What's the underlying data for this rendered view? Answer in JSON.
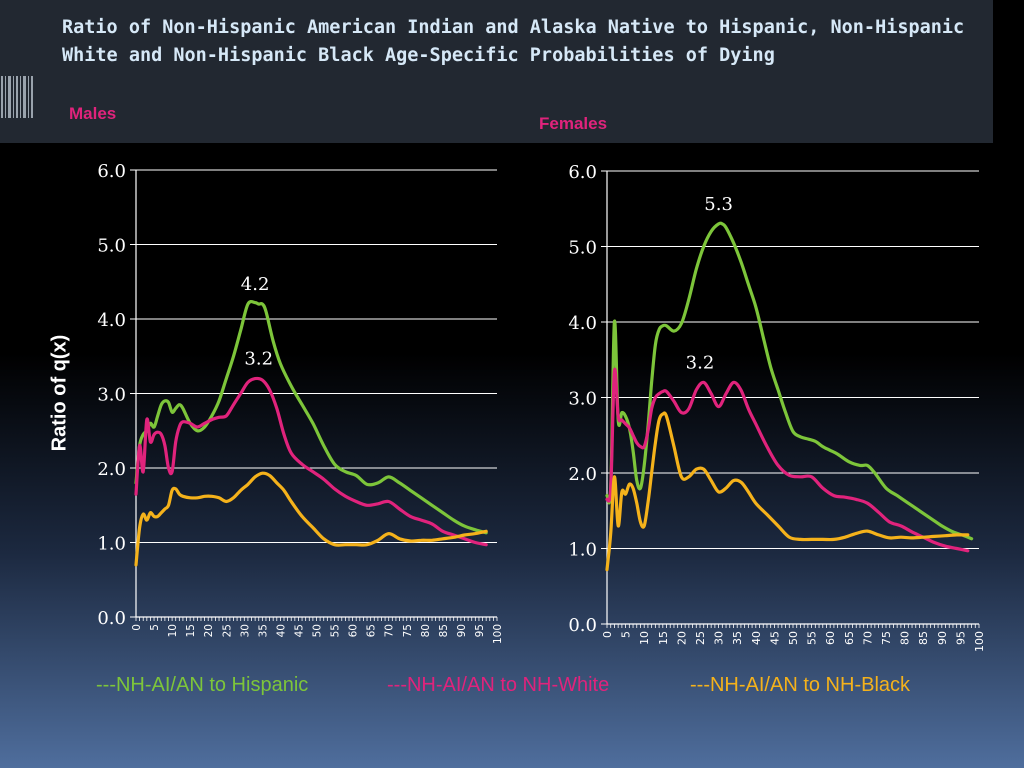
{
  "title": "Ratio of Non-Hispanic American Indian and Alaska Native to Hispanic, Non-Hispanic White and Non-Hispanic Black Age-Specific Probabilities of Dying",
  "ylabel": "Ratio of q(x)",
  "colors": {
    "hispanic": "#7dc53a",
    "white": "#e0237c",
    "black": "#f5b21b",
    "panel_label": "#e0237c"
  },
  "legend": [
    {
      "label": "---NH-AI/AN to Hispanic",
      "color": "#7dc53a"
    },
    {
      "label": "---NH-AI/AN to NH-White",
      "color": "#e0237c"
    },
    {
      "label": "---NH-AI/AN to NH-Black",
      "color": "#f5b21b"
    }
  ],
  "chart_data": [
    {
      "type": "line",
      "panel": "Males",
      "ylim": [
        0,
        6
      ],
      "xlim": [
        0,
        100
      ],
      "yticks": [
        "0.0",
        "1.0",
        "2.0",
        "3.0",
        "4.0",
        "5.0",
        "6.0"
      ],
      "xticks": [
        "0",
        "5",
        "10",
        "15",
        "20",
        "25",
        "30",
        "35",
        "40",
        "45",
        "50",
        "55",
        "60",
        "65",
        "70",
        "75",
        "80",
        "85",
        "90",
        "95",
        "100"
      ],
      "grid": true,
      "annotations": [
        {
          "text": "4.2",
          "x": 33,
          "y": 4.2
        },
        {
          "text": "3.2",
          "x": 34,
          "y": 3.2
        }
      ],
      "series": [
        {
          "name": "---NH-AI/AN to Hispanic",
          "key": "hispanic",
          "x": [
            0,
            1,
            2,
            3,
            4,
            5,
            6,
            7,
            8,
            9,
            10,
            11,
            12,
            13,
            15,
            17,
            19,
            21,
            23,
            25,
            27,
            29,
            31,
            33,
            34,
            35,
            36,
            38,
            40,
            43,
            46,
            49,
            52,
            55,
            58,
            61,
            64,
            67,
            70,
            73,
            76,
            79,
            82,
            85,
            88,
            91,
            94,
            97
          ],
          "y": [
            1.8,
            2.3,
            2.45,
            2.5,
            2.6,
            2.55,
            2.7,
            2.85,
            2.9,
            2.88,
            2.75,
            2.8,
            2.85,
            2.8,
            2.6,
            2.5,
            2.55,
            2.7,
            2.9,
            3.2,
            3.5,
            3.85,
            4.2,
            4.22,
            4.2,
            4.2,
            4.1,
            3.7,
            3.4,
            3.1,
            2.85,
            2.6,
            2.3,
            2.05,
            1.95,
            1.9,
            1.78,
            1.8,
            1.88,
            1.8,
            1.7,
            1.6,
            1.5,
            1.4,
            1.3,
            1.22,
            1.17,
            1.13
          ]
        },
        {
          "name": "---NH-AI/AN to NH-White",
          "key": "white",
          "x": [
            0,
            1,
            2,
            3,
            4,
            5,
            6,
            7,
            8,
            9,
            10,
            11,
            12,
            13,
            15,
            17,
            19,
            21,
            23,
            25,
            27,
            29,
            31,
            33,
            35,
            37,
            39,
            41,
            43,
            46,
            49,
            52,
            55,
            58,
            61,
            64,
            67,
            70,
            73,
            76,
            79,
            82,
            85,
            88,
            91,
            94,
            97
          ],
          "y": [
            1.65,
            2.3,
            1.95,
            2.65,
            2.35,
            2.45,
            2.48,
            2.45,
            2.3,
            2.0,
            1.95,
            2.35,
            2.55,
            2.62,
            2.6,
            2.55,
            2.6,
            2.65,
            2.68,
            2.7,
            2.85,
            3.0,
            3.15,
            3.2,
            3.18,
            3.05,
            2.8,
            2.45,
            2.2,
            2.05,
            1.95,
            1.85,
            1.72,
            1.62,
            1.55,
            1.5,
            1.52,
            1.55,
            1.45,
            1.35,
            1.3,
            1.25,
            1.15,
            1.1,
            1.05,
            1.0,
            0.97
          ]
        },
        {
          "name": "---NH-AI/AN to NH-Black",
          "key": "black",
          "x": [
            0,
            1,
            2,
            3,
            4,
            5,
            6,
            7,
            8,
            9,
            10,
            11,
            12,
            13,
            15,
            17,
            19,
            21,
            23,
            25,
            27,
            29,
            31,
            33,
            35,
            37,
            39,
            41,
            43,
            46,
            49,
            52,
            55,
            58,
            61,
            64,
            67,
            70,
            73,
            76,
            79,
            82,
            85,
            88,
            91,
            94,
            97
          ],
          "y": [
            0.7,
            1.2,
            1.38,
            1.3,
            1.4,
            1.35,
            1.35,
            1.4,
            1.45,
            1.5,
            1.7,
            1.72,
            1.65,
            1.62,
            1.6,
            1.6,
            1.62,
            1.62,
            1.6,
            1.55,
            1.6,
            1.7,
            1.78,
            1.88,
            1.93,
            1.9,
            1.8,
            1.7,
            1.55,
            1.35,
            1.2,
            1.05,
            0.97,
            0.97,
            0.97,
            0.97,
            1.03,
            1.12,
            1.05,
            1.02,
            1.03,
            1.03,
            1.05,
            1.07,
            1.1,
            1.12,
            1.15
          ]
        }
      ]
    },
    {
      "type": "line",
      "panel": "Females",
      "ylim": [
        0,
        6
      ],
      "xlim": [
        0,
        100
      ],
      "yticks": [
        "0.0",
        "1.0",
        "2.0",
        "3.0",
        "4.0",
        "5.0",
        "6.0"
      ],
      "xticks": [
        "0",
        "5",
        "10",
        "15",
        "20",
        "25",
        "30",
        "35",
        "40",
        "45",
        "50",
        "55",
        "60",
        "65",
        "70",
        "75",
        "80",
        "85",
        "90",
        "95",
        "100"
      ],
      "grid": true,
      "annotations": [
        {
          "text": "5.3",
          "x": 30,
          "y": 5.3
        },
        {
          "text": "3.2",
          "x": 25,
          "y": 3.2
        }
      ],
      "series": [
        {
          "name": "---NH-AI/AN to Hispanic",
          "key": "hispanic",
          "x": [
            0,
            1,
            2,
            3,
            4,
            5,
            6,
            7,
            8,
            9,
            10,
            11,
            12,
            13,
            14,
            15,
            16,
            18,
            20,
            22,
            24,
            26,
            28,
            30,
            31,
            32,
            34,
            36,
            38,
            40,
            42,
            44,
            46,
            48,
            50,
            52,
            54,
            56,
            58,
            60,
            62,
            65,
            68,
            70,
            72,
            75,
            78,
            81,
            84,
            87,
            90,
            93,
            96,
            98
          ],
          "y": [
            1.7,
            1.8,
            4.0,
            2.7,
            2.8,
            2.75,
            2.6,
            2.3,
            1.9,
            1.8,
            2.1,
            2.6,
            3.2,
            3.7,
            3.9,
            3.95,
            3.95,
            3.88,
            3.98,
            4.3,
            4.7,
            5.0,
            5.2,
            5.3,
            5.3,
            5.25,
            5.05,
            4.8,
            4.5,
            4.2,
            3.8,
            3.4,
            3.1,
            2.8,
            2.55,
            2.48,
            2.45,
            2.42,
            2.35,
            2.3,
            2.25,
            2.15,
            2.1,
            2.1,
            2.0,
            1.8,
            1.7,
            1.6,
            1.5,
            1.4,
            1.3,
            1.22,
            1.17,
            1.13
          ]
        },
        {
          "name": "---NH-AI/AN to NH-White",
          "key": "white",
          "x": [
            0,
            1,
            2,
            3,
            4,
            5,
            6,
            7,
            8,
            9,
            10,
            11,
            12,
            13,
            14,
            15,
            16,
            18,
            20,
            22,
            24,
            26,
            28,
            30,
            32,
            34,
            36,
            38,
            40,
            43,
            46,
            49,
            52,
            55,
            58,
            61,
            64,
            67,
            70,
            73,
            76,
            79,
            82,
            85,
            88,
            91,
            94,
            97
          ],
          "y": [
            1.65,
            1.8,
            3.35,
            2.75,
            2.7,
            2.65,
            2.6,
            2.5,
            2.4,
            2.35,
            2.35,
            2.55,
            2.85,
            3.0,
            3.05,
            3.08,
            3.08,
            2.95,
            2.8,
            2.85,
            3.1,
            3.2,
            3.05,
            2.88,
            3.05,
            3.2,
            3.1,
            2.85,
            2.65,
            2.35,
            2.1,
            1.97,
            1.95,
            1.95,
            1.8,
            1.7,
            1.68,
            1.65,
            1.6,
            1.48,
            1.35,
            1.3,
            1.22,
            1.15,
            1.08,
            1.03,
            1.0,
            0.97
          ]
        },
        {
          "name": "---NH-AI/AN to NH-Black",
          "key": "black",
          "x": [
            0,
            1,
            2,
            3,
            4,
            5,
            6,
            7,
            8,
            9,
            10,
            11,
            12,
            13,
            14,
            15,
            16,
            18,
            20,
            22,
            24,
            26,
            28,
            30,
            32,
            34,
            36,
            38,
            40,
            43,
            46,
            49,
            52,
            55,
            58,
            61,
            64,
            67,
            70,
            73,
            76,
            79,
            82,
            85,
            88,
            91,
            94,
            97
          ],
          "y": [
            0.72,
            1.2,
            1.95,
            1.3,
            1.75,
            1.72,
            1.85,
            1.8,
            1.6,
            1.35,
            1.3,
            1.6,
            2.0,
            2.4,
            2.7,
            2.78,
            2.75,
            2.35,
            1.95,
            1.95,
            2.05,
            2.05,
            1.9,
            1.75,
            1.8,
            1.9,
            1.88,
            1.75,
            1.6,
            1.45,
            1.3,
            1.15,
            1.12,
            1.12,
            1.12,
            1.12,
            1.15,
            1.2,
            1.23,
            1.18,
            1.14,
            1.15,
            1.14,
            1.15,
            1.16,
            1.17,
            1.18,
            1.18
          ]
        }
      ]
    }
  ]
}
